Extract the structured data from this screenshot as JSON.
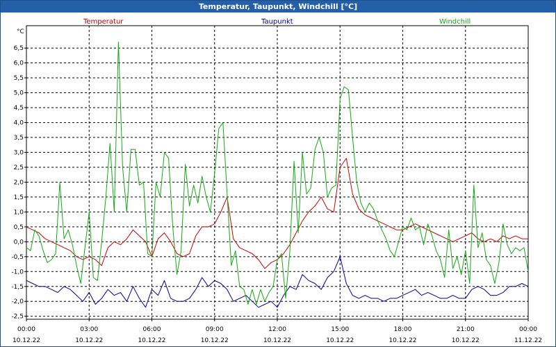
{
  "window": {
    "title": "Temperatur, Taupunkt, Windchill [°C]"
  },
  "colors": {
    "title_bar": "#2360a8",
    "temperature": "#cc0000",
    "dewpoint": "#000099",
    "windchill": "#11aa11"
  },
  "chart_data": {
    "type": "line",
    "title": "Temperatur, Taupunkt, Windchill [°C]",
    "ylabel": "°C",
    "xlabel": "",
    "ylim": [
      -2.6,
      7.25
    ],
    "xlim": [
      0,
      24
    ],
    "grid": true,
    "legend": [
      "Temperatur",
      "Taupunkt",
      "Windchill"
    ],
    "y_ticks": [
      6.5,
      6.0,
      5.5,
      5.0,
      4.5,
      4.0,
      3.5,
      3.0,
      2.5,
      2.0,
      1.5,
      1.0,
      0.5,
      0.0,
      -0.5,
      -1.0,
      -1.5,
      -2.0,
      -2.5
    ],
    "y_tick_labels": [
      "6,5",
      "6,0",
      "5,5",
      "5,0",
      "4,5",
      "4,0",
      "3,5",
      "3,0",
      "2,5",
      "2,0",
      "1,5",
      "1,0",
      "0,5",
      "0,0",
      "-0,5",
      "-1,0",
      "-1,5",
      "-2,0",
      "-2,5"
    ],
    "x_ticks": [
      {
        "hour": 0,
        "time": "00:00",
        "date": "10.12.22"
      },
      {
        "hour": 3,
        "time": "03:00",
        "date": "10.12.22"
      },
      {
        "hour": 6,
        "time": "06:00",
        "date": "10.12.22"
      },
      {
        "hour": 9,
        "time": "09:00",
        "date": "10.12.22"
      },
      {
        "hour": 12,
        "time": "12:00",
        "date": "10.12.22"
      },
      {
        "hour": 15,
        "time": "15:00",
        "date": "10.12.22"
      },
      {
        "hour": 18,
        "time": "18:00",
        "date": "10.12.22"
      },
      {
        "hour": 21,
        "time": "21:00",
        "date": "10.12.22"
      },
      {
        "hour": 24,
        "time": "00:00",
        "date": "11.12.22"
      }
    ],
    "series": [
      {
        "name": "Temperatur",
        "color": "#cc0000",
        "x": [
          0,
          0.3,
          0.6,
          0.9,
          1.2,
          1.5,
          1.8,
          2.1,
          2.4,
          2.7,
          3.0,
          3.3,
          3.6,
          3.9,
          4.2,
          4.5,
          4.8,
          5.1,
          5.4,
          5.7,
          6.0,
          6.3,
          6.6,
          6.9,
          7.2,
          7.5,
          7.8,
          8.1,
          8.4,
          8.7,
          9.0,
          9.3,
          9.6,
          9.9,
          10.2,
          10.5,
          10.8,
          11.1,
          11.4,
          11.7,
          12.0,
          12.3,
          12.6,
          12.9,
          13.2,
          13.5,
          13.8,
          14.1,
          14.4,
          14.7,
          15.0,
          15.3,
          15.6,
          15.9,
          16.2,
          16.5,
          16.8,
          17.1,
          17.4,
          17.7,
          18.0,
          18.3,
          18.6,
          18.9,
          19.2,
          19.5,
          19.8,
          20.1,
          20.4,
          20.7,
          21.0,
          21.3,
          21.6,
          21.9,
          22.2,
          22.5,
          22.8,
          23.1,
          23.4,
          23.7,
          24.0
        ],
        "values": [
          0.5,
          0.4,
          0.3,
          0.1,
          0.0,
          -0.1,
          -0.2,
          -0.3,
          -0.5,
          -0.6,
          -0.5,
          -0.6,
          -0.8,
          -0.2,
          0.0,
          -0.1,
          0.1,
          0.4,
          0.2,
          0.0,
          -0.5,
          0.1,
          0.3,
          0.0,
          -0.4,
          -0.5,
          -0.4,
          0.2,
          0.5,
          0.5,
          0.6,
          1.0,
          1.5,
          0.1,
          -0.2,
          -0.3,
          -0.4,
          -0.6,
          -0.9,
          -0.7,
          -0.6,
          -0.4,
          -0.1,
          0.3,
          0.7,
          1.0,
          1.2,
          1.5,
          1.1,
          1.0,
          2.5,
          2.8,
          1.6,
          1.1,
          0.9,
          0.8,
          0.7,
          0.6,
          0.5,
          0.4,
          0.4,
          0.5,
          0.6,
          0.5,
          0.4,
          0.3,
          0.2,
          0.1,
          0.0,
          0.1,
          0.2,
          0.3,
          0.1,
          0.0,
          0.1,
          0.0,
          0.2,
          0.1,
          0.2,
          0.1,
          0.1
        ]
      },
      {
        "name": "Taupunkt",
        "color": "#000099",
        "x": [
          0,
          0.3,
          0.6,
          0.9,
          1.2,
          1.5,
          1.8,
          2.1,
          2.4,
          2.7,
          3.0,
          3.3,
          3.6,
          3.9,
          4.2,
          4.5,
          4.8,
          5.1,
          5.4,
          5.7,
          6.0,
          6.3,
          6.6,
          6.9,
          7.2,
          7.5,
          7.8,
          8.1,
          8.4,
          8.7,
          9.0,
          9.3,
          9.6,
          9.9,
          10.2,
          10.5,
          10.8,
          11.1,
          11.4,
          11.7,
          12.0,
          12.3,
          12.6,
          12.9,
          13.2,
          13.5,
          13.8,
          14.1,
          14.4,
          14.7,
          15.0,
          15.3,
          15.6,
          15.9,
          16.2,
          16.5,
          16.8,
          17.1,
          17.4,
          17.7,
          18.0,
          18.3,
          18.6,
          18.9,
          19.2,
          19.5,
          19.8,
          20.1,
          20.4,
          20.7,
          21.0,
          21.3,
          21.6,
          21.9,
          22.2,
          22.5,
          22.8,
          23.1,
          23.4,
          23.7,
          24.0
        ],
        "values": [
          -1.3,
          -1.4,
          -1.5,
          -1.5,
          -1.6,
          -1.7,
          -1.5,
          -1.6,
          -1.8,
          -2.0,
          -1.7,
          -2.1,
          -1.9,
          -1.6,
          -1.8,
          -1.7,
          -2.0,
          -1.5,
          -1.9,
          -2.2,
          -1.6,
          -1.8,
          -1.3,
          -1.9,
          -2.0,
          -2.0,
          -1.9,
          -1.6,
          -1.2,
          -1.5,
          -1.3,
          -1.4,
          -1.6,
          -2.0,
          -1.9,
          -1.8,
          -2.0,
          -2.2,
          -2.1,
          -2.0,
          -2.2,
          -1.8,
          -1.5,
          -1.6,
          -1.1,
          -1.3,
          -1.4,
          -1.6,
          -1.2,
          -1.0,
          -0.5,
          -1.4,
          -1.8,
          -1.9,
          -1.8,
          -1.9,
          -1.9,
          -2.0,
          -1.9,
          -1.9,
          -1.8,
          -1.7,
          -1.6,
          -1.8,
          -1.7,
          -1.8,
          -1.9,
          -1.9,
          -1.8,
          -1.9,
          -1.9,
          -1.6,
          -1.5,
          -1.6,
          -1.8,
          -1.8,
          -1.7,
          -1.5,
          -1.5,
          -1.4,
          -1.5
        ]
      },
      {
        "name": "Windchill",
        "color": "#11aa11",
        "x": [
          0,
          0.2,
          0.4,
          0.6,
          0.8,
          1.0,
          1.2,
          1.4,
          1.6,
          1.8,
          2.0,
          2.2,
          2.4,
          2.6,
          2.8,
          3.0,
          3.2,
          3.4,
          3.6,
          3.8,
          4.0,
          4.2,
          4.4,
          4.6,
          4.8,
          5.0,
          5.2,
          5.4,
          5.6,
          5.8,
          6.0,
          6.2,
          6.4,
          6.6,
          6.8,
          7.0,
          7.2,
          7.4,
          7.6,
          7.8,
          8.0,
          8.2,
          8.4,
          8.6,
          8.8,
          9.0,
          9.2,
          9.4,
          9.6,
          9.8,
          10.0,
          10.2,
          10.4,
          10.6,
          10.8,
          11.0,
          11.2,
          11.4,
          11.6,
          11.8,
          12.0,
          12.2,
          12.4,
          12.6,
          12.8,
          13.0,
          13.2,
          13.4,
          13.6,
          13.8,
          14.0,
          14.2,
          14.4,
          14.6,
          14.8,
          15.0,
          15.2,
          15.4,
          15.6,
          15.8,
          16.0,
          16.2,
          16.4,
          16.6,
          16.8,
          17.0,
          17.2,
          17.4,
          17.6,
          17.8,
          18.0,
          18.2,
          18.4,
          18.6,
          18.8,
          19.0,
          19.2,
          19.4,
          19.6,
          19.8,
          20.0,
          20.2,
          20.4,
          20.6,
          20.8,
          21.0,
          21.2,
          21.4,
          21.6,
          21.8,
          22.0,
          22.2,
          22.4,
          22.6,
          22.8,
          23.0,
          23.2,
          23.4,
          23.6,
          23.8,
          24.0
        ],
        "values": [
          -0.2,
          -0.3,
          0.4,
          0.2,
          -0.3,
          -0.7,
          -0.6,
          -0.4,
          2.0,
          0.1,
          0.4,
          -0.1,
          -0.8,
          -1.4,
          -0.2,
          1.0,
          -1.2,
          -1.3,
          0.0,
          1.5,
          3.3,
          1.0,
          6.7,
          2.5,
          1.0,
          3.1,
          3.1,
          1.9,
          2.0,
          -0.4,
          -0.5,
          2.0,
          1.5,
          3.0,
          2.8,
          0.5,
          -1.1,
          -0.3,
          2.6,
          1.2,
          1.9,
          1.3,
          2.2,
          1.5,
          1.0,
          2.3,
          3.8,
          4.0,
          1.6,
          -0.8,
          -0.3,
          -1.5,
          -1.6,
          -2.1,
          -1.6,
          -2.1,
          -1.6,
          -2.0,
          -1.7,
          -1.5,
          -0.6,
          -0.4,
          -1.9,
          -0.3,
          2.7,
          0.3,
          3.0,
          1.6,
          1.8,
          3.1,
          3.5,
          3.0,
          1.5,
          1.8,
          1.9,
          4.8,
          5.2,
          5.1,
          3.5,
          2.0,
          1.3,
          1.0,
          1.3,
          1.1,
          0.7,
          0.4,
          0.1,
          -0.3,
          -0.5,
          0.0,
          0.5,
          0.4,
          0.8,
          0.4,
          0.5,
          -0.1,
          0.6,
          0.2,
          -0.3,
          -0.6,
          -1.2,
          0.4,
          -0.9,
          -0.5,
          -1.1,
          -0.3,
          -1.4,
          1.9,
          -0.2,
          0.3,
          -0.6,
          -0.8,
          -1.4,
          -0.7,
          0.6,
          -0.1,
          -0.4,
          -0.2,
          -0.3,
          -0.2,
          -1.0
        ]
      }
    ]
  }
}
